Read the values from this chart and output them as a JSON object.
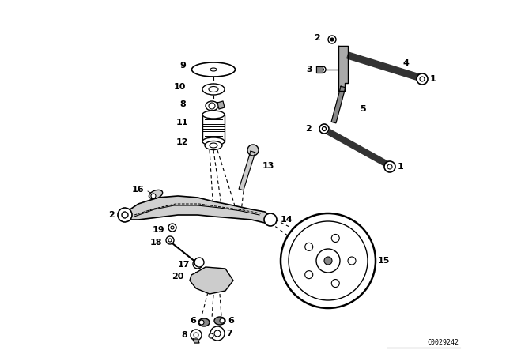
{
  "part_id": "C0029242",
  "bg_color": "#ffffff",
  "line_color": "#000000",
  "fig_width": 6.4,
  "fig_height": 4.48,
  "dpi": 100
}
